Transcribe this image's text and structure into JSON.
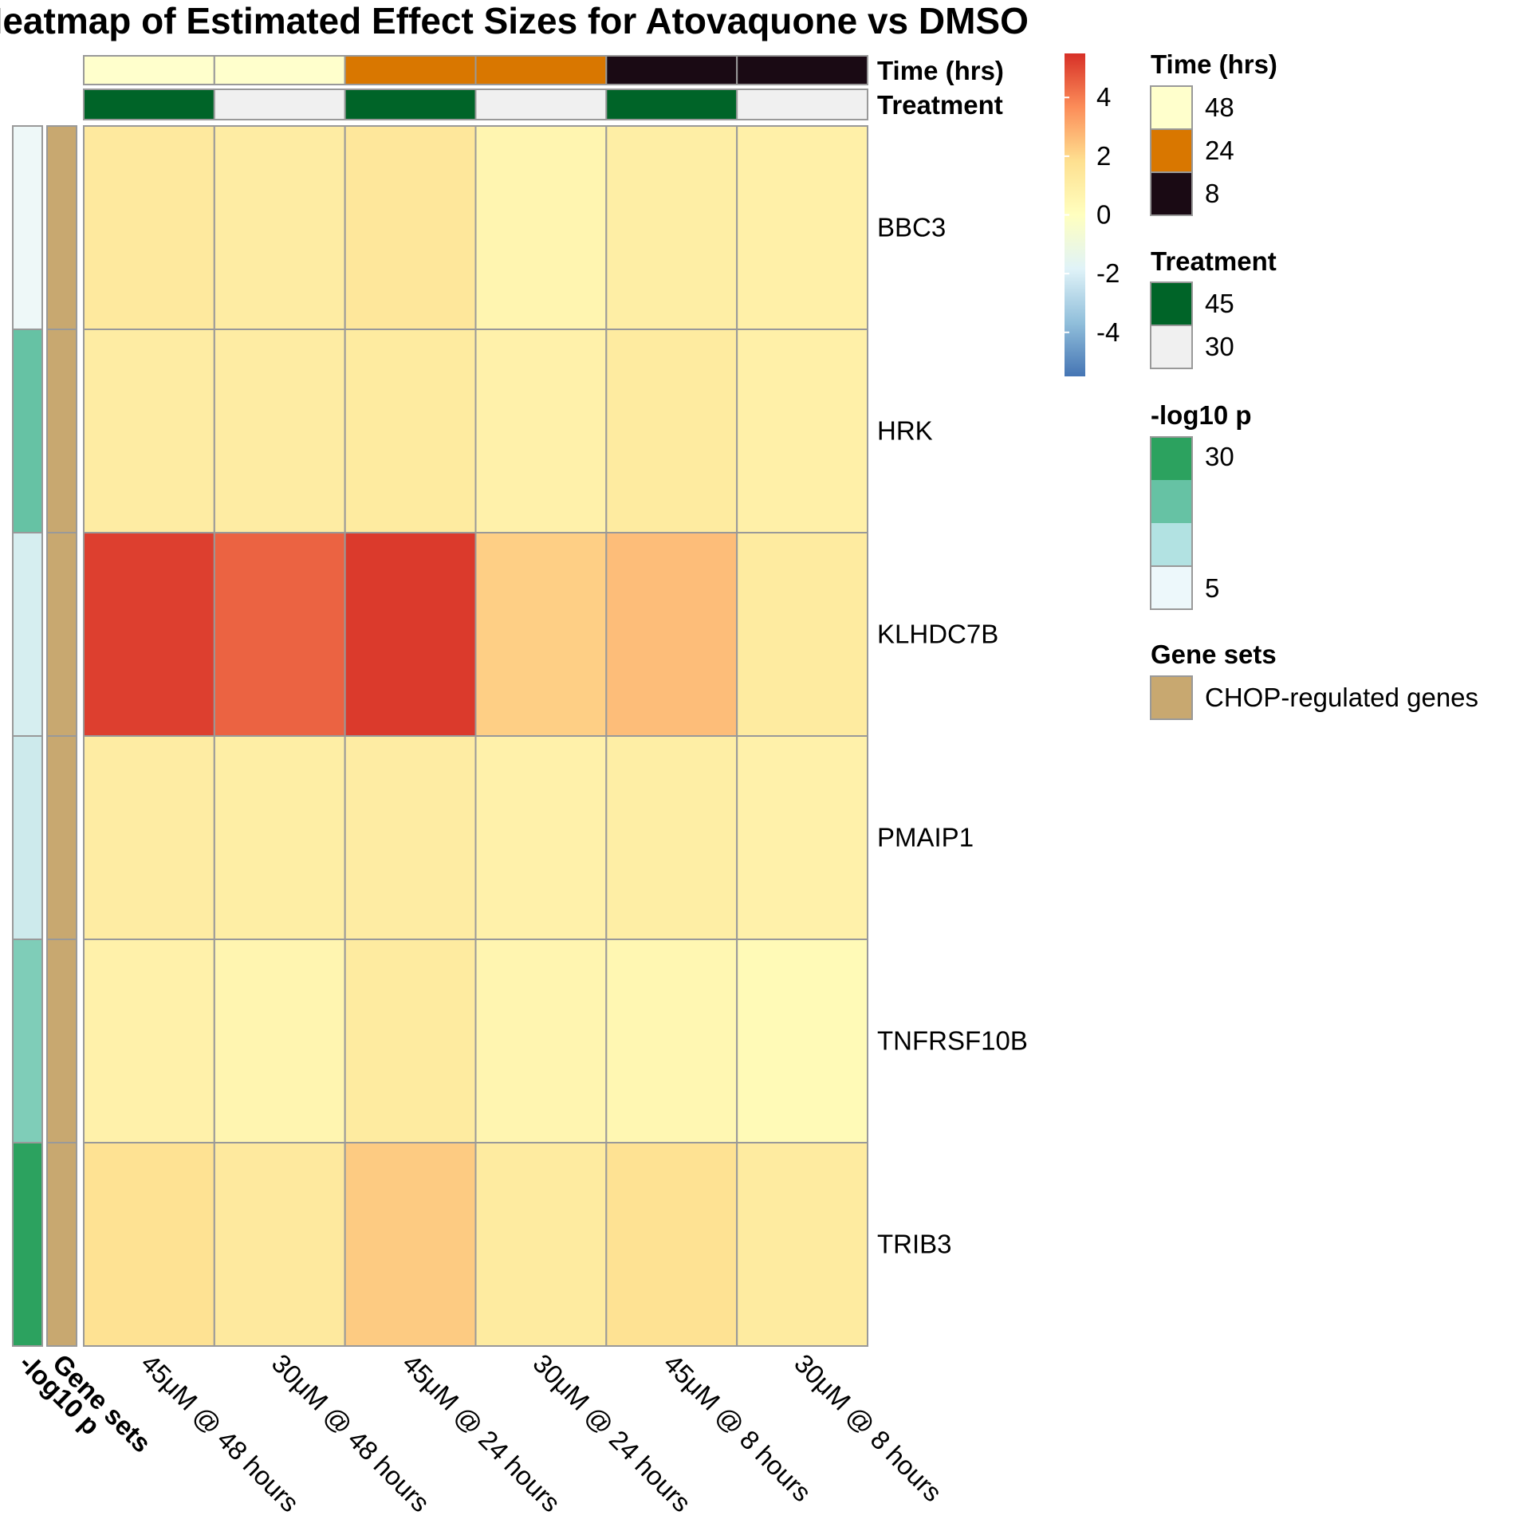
{
  "chart_data": {
    "type": "heatmap",
    "title": "Heatmap of Estimated Effect Sizes for Atovaquone vs DMSO",
    "columns": [
      "45μM @ 48 hours",
      "30μM @ 48 hours",
      "45μM @ 24 hours",
      "30μM @ 24 hours",
      "45μM @ 8 hours",
      "30μM @ 8 hours"
    ],
    "rows": [
      "BBC3",
      "HRK",
      "KLHDC7B",
      "PMAIP1",
      "TNFRSF10B",
      "TRIB3"
    ],
    "values": [
      [
        1.3,
        1.1,
        1.4,
        0.6,
        1.0,
        0.9
      ],
      [
        1.1,
        1.1,
        1.2,
        0.8,
        1.2,
        0.9
      ],
      [
        5.2,
        4.5,
        5.3,
        2.2,
        2.6,
        1.2
      ],
      [
        1.1,
        1.0,
        1.1,
        0.8,
        1.0,
        0.8
      ],
      [
        0.8,
        0.6,
        1.2,
        0.6,
        0.5,
        0.3
      ],
      [
        1.7,
        1.3,
        2.3,
        1.2,
        1.7,
        1.2
      ]
    ],
    "color_scale": {
      "range": [
        -5.5,
        5.5
      ],
      "ticks": [
        "4",
        "2",
        "0",
        "-2",
        "-4"
      ],
      "tick_values": [
        4,
        2,
        0,
        -2,
        -4
      ],
      "stops": [
        "#4575b4",
        "#91bfdb",
        "#e0f3f8",
        "#ffffbf",
        "#fee090",
        "#fc8d59",
        "#d73027"
      ]
    },
    "column_annotations": [
      {
        "name": "Time (hrs)",
        "values": [
          "48",
          "48",
          "24",
          "24",
          "8",
          "8"
        ],
        "legend": [
          {
            "label": "48",
            "color": "#ffffcc"
          },
          {
            "label": "24",
            "color": "#d97700"
          },
          {
            "label": "8",
            "color": "#1a0a14"
          }
        ]
      },
      {
        "name": "Treatment",
        "values": [
          "45",
          "30",
          "45",
          "30",
          "45",
          "30"
        ],
        "legend": [
          {
            "label": "45",
            "color": "#006428"
          },
          {
            "label": "30",
            "color": "#f0f0f0"
          }
        ]
      }
    ],
    "row_annotations": [
      {
        "name": "-log10 p",
        "colors": [
          "#eef8f8",
          "#66c2a4",
          "#d6eef0",
          "#cdeaec",
          "#7fcdb8",
          "#2ca25f"
        ],
        "legend_labels": [
          "30",
          "5"
        ],
        "legend_colors": [
          "#2ca25f",
          "#66c2a4",
          "#b2e2e2",
          "#edf8fb"
        ]
      },
      {
        "name": "Gene sets",
        "values": [
          "CHOP-regulated genes",
          "CHOP-regulated genes",
          "CHOP-regulated genes",
          "CHOP-regulated genes",
          "CHOP-regulated genes",
          "CHOP-regulated genes"
        ],
        "legend": [
          {
            "label": "CHOP-regulated genes",
            "color": "#c8a870"
          }
        ]
      }
    ],
    "legends": {
      "time_title": "Time (hrs)",
      "treatment_title": "Treatment",
      "logp_title": "-log10 p",
      "genesets_title": "Gene sets"
    }
  }
}
